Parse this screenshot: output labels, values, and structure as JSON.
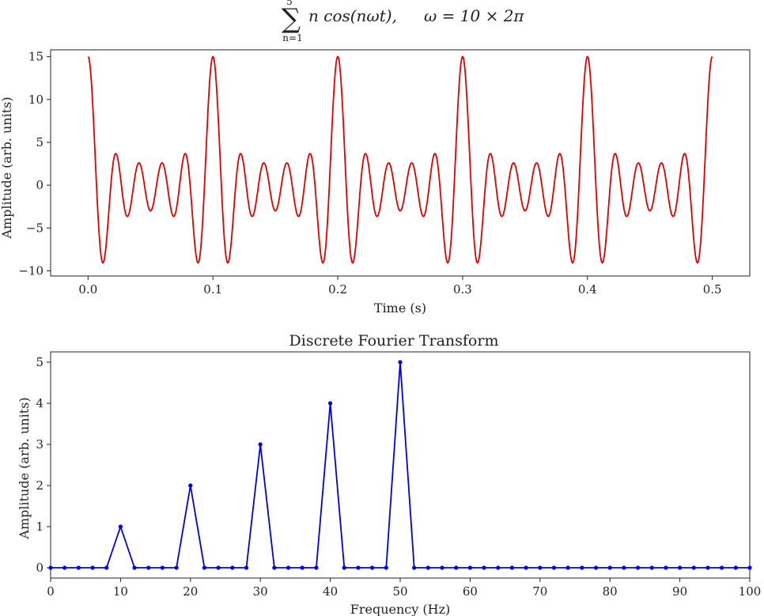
{
  "chart_data": [
    {
      "type": "line",
      "title_parts": {
        "sum": "∑",
        "lower": "n=1",
        "upper": "5",
        "term": "n cos(nωt),",
        "omega": "ω = 10 × 2π"
      },
      "xlabel": "Time (s)",
      "ylabel": "Amplitude (arb. units)",
      "xlim": [
        -0.03,
        0.53
      ],
      "ylim": [
        -10.6,
        15.8
      ],
      "xticks": [
        0.0,
        0.1,
        0.2,
        0.3,
        0.4,
        0.5
      ],
      "xtick_labels": [
        "0.0",
        "0.1",
        "0.2",
        "0.3",
        "0.4",
        "0.5"
      ],
      "yticks": [
        -10,
        -5,
        0,
        5,
        10,
        15
      ],
      "ytick_labels": [
        "−10",
        "−5",
        "0",
        "5",
        "10",
        "15"
      ],
      "function": {
        "harmonics": [
          1,
          2,
          3,
          4,
          5
        ],
        "fundamental_hz": 10,
        "t_range": [
          0,
          0.5
        ]
      },
      "series": [
        {
          "color": "#e00000"
        }
      ],
      "grid": false
    },
    {
      "type": "line",
      "title": "Discrete Fourier Transform",
      "xlabel": "Frequency (Hz)",
      "ylabel": "Amplitude (arb. units)",
      "xlim": [
        0,
        100
      ],
      "ylim": [
        -0.25,
        5.25
      ],
      "xticks": [
        0,
        10,
        20,
        30,
        40,
        50,
        60,
        70,
        80,
        90,
        100
      ],
      "xtick_labels": [
        "0",
        "10",
        "20",
        "30",
        "40",
        "50",
        "60",
        "70",
        "80",
        "90",
        "100"
      ],
      "yticks": [
        0,
        1,
        2,
        3,
        4,
        5
      ],
      "ytick_labels": [
        "0",
        "1",
        "2",
        "3",
        "4",
        "5"
      ],
      "x_step": 2,
      "x_range": [
        0,
        100
      ],
      "peaks": [
        {
          "x": 10,
          "y": 1
        },
        {
          "x": 20,
          "y": 2
        },
        {
          "x": 30,
          "y": 3
        },
        {
          "x": 40,
          "y": 4
        },
        {
          "x": 50,
          "y": 5
        }
      ],
      "series": [
        {
          "color": "#0000e0",
          "marker": "dot"
        }
      ],
      "grid": false
    }
  ]
}
